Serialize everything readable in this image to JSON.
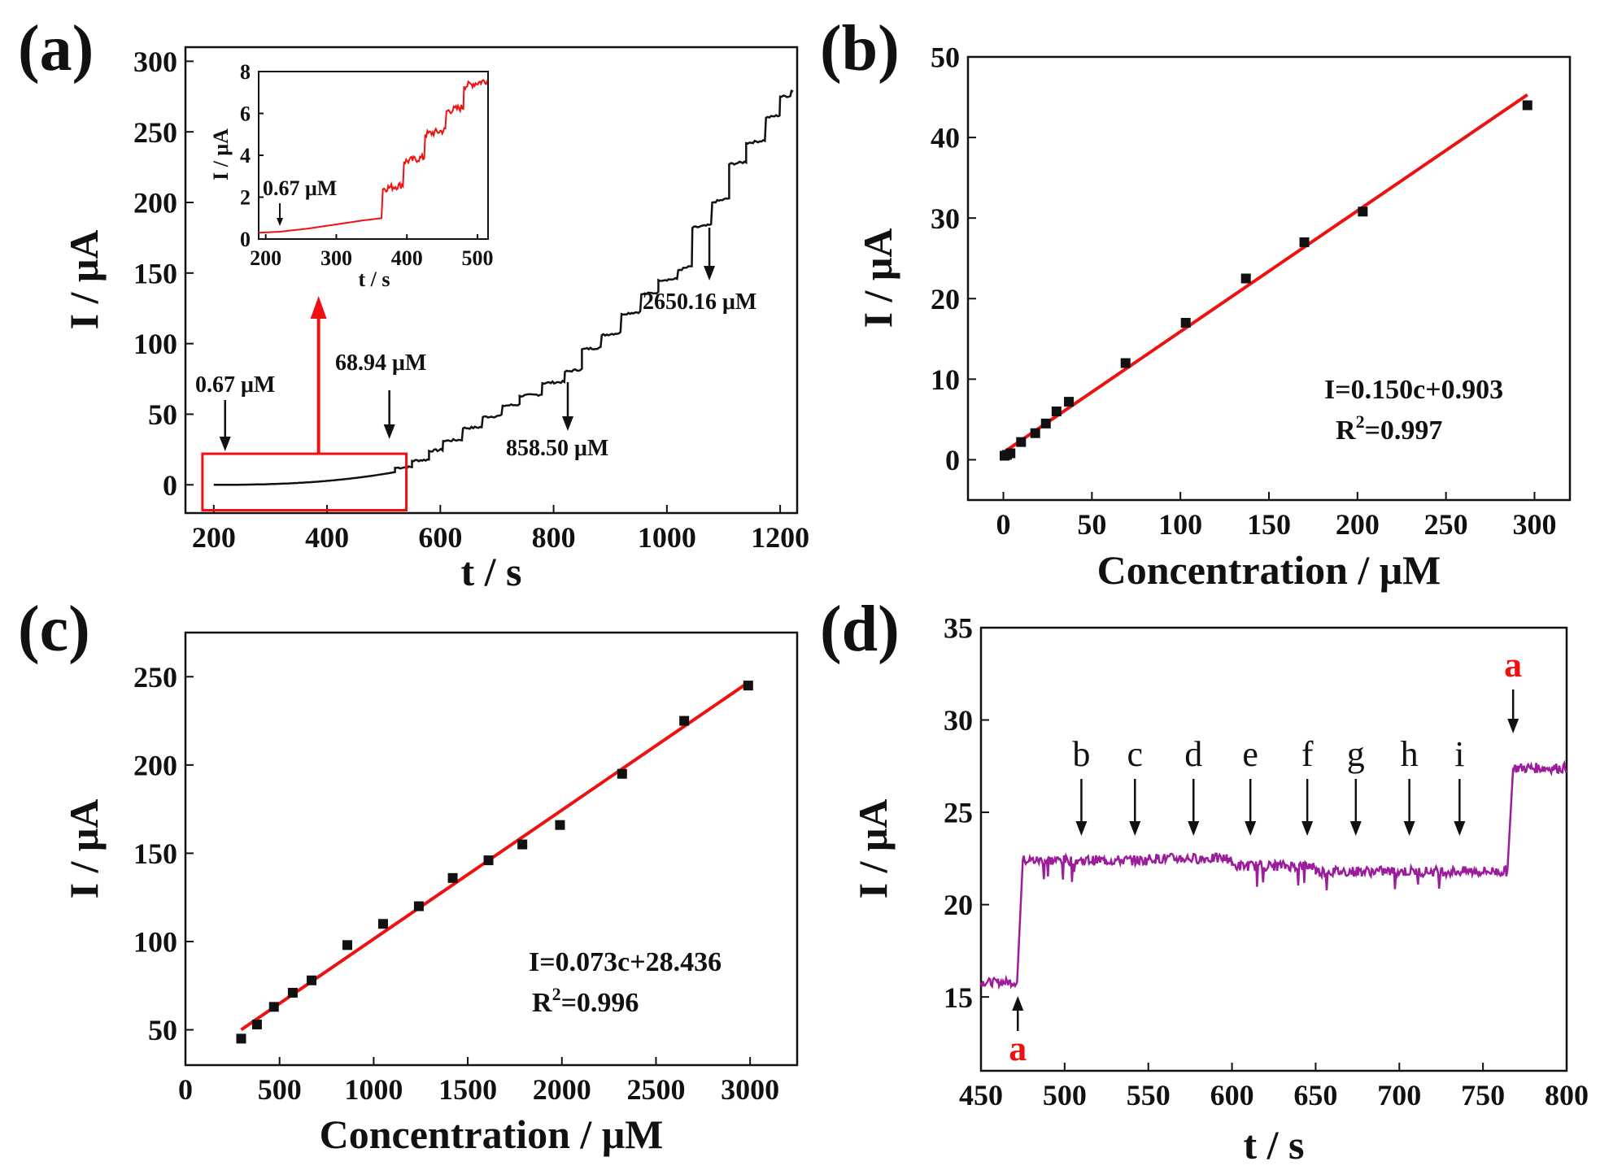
{
  "colors": {
    "axis": "#111111",
    "fit_line": "#ee1111",
    "inset_trace": "#ee1111",
    "highlight": "#ee1111",
    "trace_d": "#9b1d9b",
    "trace_a": "#111111",
    "marker": "#111111",
    "label_a": "#ee1111"
  },
  "chart_data": [
    {
      "panel": "(a)",
      "type": "line",
      "xlabel": "t / s",
      "ylabel": "I / μA",
      "xlim": [
        150,
        1230
      ],
      "ylim": [
        -20,
        310
      ],
      "xticks": [
        "200",
        "400",
        "600",
        "800",
        "1000",
        "1200"
      ],
      "yticks": [
        "0",
        "50",
        "100",
        "150",
        "200",
        "250",
        "300"
      ],
      "series": [
        {
          "name": "amperometric response",
          "step_times": [
            200,
            520,
            550,
            580,
            605,
            640,
            675,
            710,
            740,
            780,
            820,
            850,
            885,
            920,
            955,
            985,
            1020,
            1045,
            1080,
            1110,
            1140,
            1175,
            1200,
            1220
          ],
          "step_values": [
            0,
            12,
            17,
            24,
            31,
            40,
            48,
            56,
            63,
            72,
            80,
            96,
            106,
            121,
            135,
            145,
            152,
            182,
            200,
            227,
            242,
            260,
            275,
            279
          ]
        }
      ],
      "annotations": [
        {
          "text": "0.67 μM",
          "x": 220,
          "y": 0
        },
        {
          "text": "68.94 μM",
          "x": 510,
          "y": 12
        },
        {
          "text": "858.50 μM",
          "x": 825,
          "y": 80
        },
        {
          "text": "2650.16 μM",
          "x": 1075,
          "y": 200
        }
      ],
      "highlight_box": {
        "x": [
          180,
          540
        ],
        "y": [
          -18,
          22
        ]
      },
      "inset": {
        "type": "line",
        "xlabel": "t / s",
        "ylabel": "I / μA",
        "xlim": [
          190,
          515
        ],
        "ylim": [
          0,
          8
        ],
        "xticks": [
          "200",
          "300",
          "400",
          "500"
        ],
        "yticks": [
          "0",
          "2",
          "4",
          "6",
          "8"
        ],
        "x": [
          190,
          220,
          260,
          300,
          340,
          365,
          366,
          395,
          396,
          425,
          426,
          455,
          456,
          480,
          481,
          515
        ],
        "y": [
          0.3,
          0.35,
          0.5,
          0.7,
          0.9,
          1.0,
          2.4,
          2.6,
          3.7,
          3.9,
          5.0,
          5.2,
          6.1,
          6.3,
          7.3,
          7.6
        ],
        "annotation": {
          "text": "0.67 μM",
          "x": 220,
          "y": 0.35
        }
      }
    },
    {
      "panel": "(b)",
      "type": "scatter",
      "xlabel": "Concentration / μM",
      "ylabel": "I / μA",
      "xlim": [
        -20,
        320
      ],
      "ylim": [
        -5,
        50
      ],
      "xticks": [
        "0",
        "50",
        "100",
        "150",
        "200",
        "250",
        "300"
      ],
      "yticks": [
        "0",
        "10",
        "20",
        "30",
        "40",
        "50"
      ],
      "x": [
        0.67,
        2,
        4,
        10,
        18,
        24,
        30,
        37,
        69,
        103,
        137,
        170,
        203,
        296
      ],
      "y": [
        0.5,
        0.6,
        0.8,
        2.2,
        3.3,
        4.5,
        6.0,
        7.2,
        12.0,
        17.0,
        22.5,
        27.0,
        30.8,
        44.0
      ],
      "fit": {
        "slope": 0.15,
        "intercept": 0.903,
        "x_range": [
          0,
          296
        ]
      },
      "equation": "I=0.150c+0.903",
      "r2_prefix": "R",
      "r2_sup": "2",
      "r2_value": "=0.997"
    },
    {
      "panel": "(c)",
      "type": "scatter",
      "xlabel": "Concentration / μM",
      "ylabel": "I / μA",
      "xlim": [
        0,
        3250
      ],
      "ylim": [
        30,
        275
      ],
      "xticks": [
        "0",
        "500",
        "1000",
        "1500",
        "2000",
        "2500",
        "3000"
      ],
      "yticks": [
        "50",
        "100",
        "150",
        "200",
        "250"
      ],
      "x": [
        296,
        380,
        470,
        570,
        670,
        860,
        1050,
        1240,
        1420,
        1610,
        1790,
        1990,
        2320,
        2650,
        2990
      ],
      "y": [
        45,
        53,
        63,
        71,
        78,
        98,
        110,
        120,
        136,
        146,
        155,
        166,
        195,
        225,
        245
      ],
      "fit": {
        "slope": 0.073,
        "intercept": 28.436,
        "x_range": [
          296,
          2990
        ]
      },
      "equation": "I=0.073c+28.436",
      "r2_prefix": "R",
      "r2_sup": "2",
      "r2_value": "=0.996"
    },
    {
      "panel": "(d)",
      "type": "line",
      "xlabel": "t / s",
      "ylabel": "I / μA",
      "xlim": [
        450,
        800
      ],
      "ylim": [
        11,
        35
      ],
      "xticks": [
        "450",
        "500",
        "550",
        "600",
        "650",
        "700",
        "750",
        "800"
      ],
      "yticks": [
        "15",
        "20",
        "25",
        "30",
        "35"
      ],
      "levels": [
        {
          "t0": 450,
          "t1": 472,
          "I": 15.8
        },
        {
          "t0": 475,
          "t1": 550,
          "I": 22.4
        },
        {
          "t0": 550,
          "t1": 600,
          "I": 22.5
        },
        {
          "t0": 600,
          "t1": 650,
          "I": 22.1
        },
        {
          "t0": 650,
          "t1": 765,
          "I": 21.8
        },
        {
          "t0": 768,
          "t1": 800,
          "I": 27.4
        }
      ],
      "markers": [
        {
          "label": "b",
          "t": 510,
          "color_key": "marker"
        },
        {
          "label": "c",
          "t": 542,
          "color_key": "marker"
        },
        {
          "label": "d",
          "t": 577,
          "color_key": "marker"
        },
        {
          "label": "e",
          "t": 611,
          "color_key": "marker"
        },
        {
          "label": "f",
          "t": 645,
          "color_key": "marker"
        },
        {
          "label": "g",
          "t": 674,
          "color_key": "marker"
        },
        {
          "label": "h",
          "t": 706,
          "color_key": "marker"
        },
        {
          "label": "i",
          "t": 736,
          "color_key": "marker"
        },
        {
          "label": "a",
          "t": 768,
          "color_key": "label_a"
        }
      ],
      "bottom_marker": {
        "label": "a",
        "t": 472
      }
    }
  ]
}
